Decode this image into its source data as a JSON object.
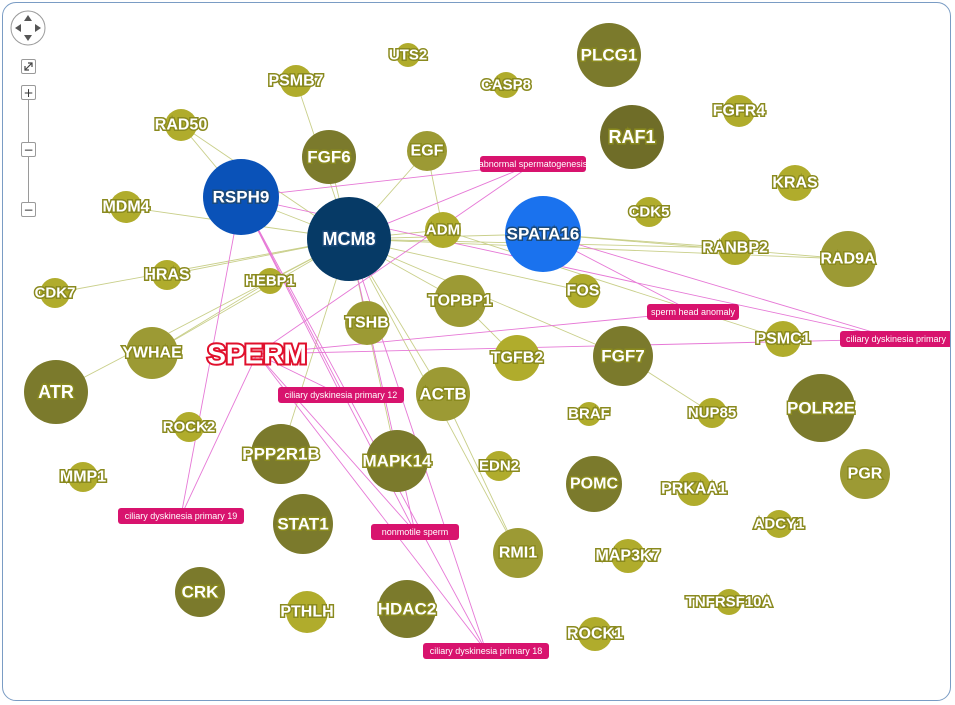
{
  "controls": {
    "fit_icon": "expand-icon",
    "zoom_in": "+",
    "zoom_handle": "−",
    "zoom_out": "−"
  },
  "colors": {
    "gene_light": "#b0ac2c",
    "gene_mid": "#9c9a34",
    "gene_dark": "#7b7a2c",
    "gene_darkest": "#6f6d28",
    "rsph9": "#0a52b8",
    "mcm8": "#063a66",
    "spata16": "#1a72ee",
    "phenotype": "#d8136e",
    "sperm": "#e0102c"
  },
  "genes": [
    {
      "label": "UTS2",
      "shade": "light"
    },
    {
      "label": "PLCG1",
      "shade": "dark"
    },
    {
      "label": "PSMB7",
      "shade": "light"
    },
    {
      "label": "CASP8",
      "shade": "light"
    },
    {
      "label": "RAD50",
      "shade": "light"
    },
    {
      "label": "RAF1",
      "shade": "darkest"
    },
    {
      "label": "FGFR4",
      "shade": "light"
    },
    {
      "label": "FGF6",
      "shade": "dark"
    },
    {
      "label": "EGF",
      "shade": "mid"
    },
    {
      "label": "KRAS",
      "shade": "light"
    },
    {
      "label": "MDM4",
      "shade": "light"
    },
    {
      "label": "CDK5",
      "shade": "light"
    },
    {
      "label": "ADM",
      "shade": "light"
    },
    {
      "label": "RANBP2",
      "shade": "light"
    },
    {
      "label": "RAD9A",
      "shade": "mid"
    },
    {
      "label": "HRAS",
      "shade": "light"
    },
    {
      "label": "CDK7",
      "shade": "light"
    },
    {
      "label": "HEBP1",
      "shade": "light"
    },
    {
      "label": "FOS",
      "shade": "light"
    },
    {
      "label": "TOPBP1",
      "shade": "mid"
    },
    {
      "label": "TSHB",
      "shade": "mid"
    },
    {
      "label": "PSMC1",
      "shade": "light"
    },
    {
      "label": "YWHAE",
      "shade": "mid"
    },
    {
      "label": "FGF7",
      "shade": "dark"
    },
    {
      "label": "TGFB2",
      "shade": "light"
    },
    {
      "label": "ATR",
      "shade": "dark"
    },
    {
      "label": "ACTB",
      "shade": "mid"
    },
    {
      "label": "BRAF",
      "shade": "light"
    },
    {
      "label": "NUP85",
      "shade": "light"
    },
    {
      "label": "POLR2E",
      "shade": "dark"
    },
    {
      "label": "ROCK2",
      "shade": "light"
    },
    {
      "label": "PPP2R1B",
      "shade": "dark"
    },
    {
      "label": "MAPK14",
      "shade": "dark"
    },
    {
      "label": "EDN2",
      "shade": "light"
    },
    {
      "label": "PGR",
      "shade": "mid"
    },
    {
      "label": "MMP1",
      "shade": "light"
    },
    {
      "label": "POMC",
      "shade": "dark"
    },
    {
      "label": "PRKAA1",
      "shade": "light"
    },
    {
      "label": "ADCY1",
      "shade": "light"
    },
    {
      "label": "STAT1",
      "shade": "dark"
    },
    {
      "label": "RMI1",
      "shade": "mid"
    },
    {
      "label": "MAP3K7",
      "shade": "light"
    },
    {
      "label": "CRK",
      "shade": "dark"
    },
    {
      "label": "TNFRSF10A",
      "shade": "light"
    },
    {
      "label": "PTHLH",
      "shade": "light"
    },
    {
      "label": "HDAC2",
      "shade": "dark"
    },
    {
      "label": "ROCK1",
      "shade": "light"
    }
  ],
  "hubs": [
    {
      "label": "RSPH9",
      "kind": "rsph9"
    },
    {
      "label": "MCM8",
      "kind": "mcm8"
    },
    {
      "label": "SPATA16",
      "kind": "spata16"
    }
  ],
  "phenotypes": [
    {
      "label": "abnormal spermatogenesis"
    },
    {
      "label": "sperm head anomaly"
    },
    {
      "label": "ciliary dyskinesia primary"
    },
    {
      "label": "ciliary dyskinesia primary 12"
    },
    {
      "label": "ciliary dyskinesia primary 19"
    },
    {
      "label": "nonmotile sperm"
    },
    {
      "label": "ciliary dyskinesia primary 18"
    }
  ],
  "center_label": "SPERM"
}
